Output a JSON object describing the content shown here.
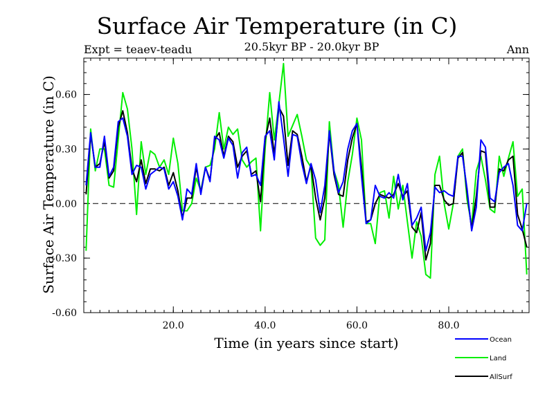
{
  "chart_data": {
    "type": "line",
    "title": "Surface Air Temperature (in C)",
    "subtitle": "20.5kyr BP - 20.0kyr BP",
    "expt_label": "Expt = teaev-teadu",
    "season_label": "Ann",
    "xlabel": "Time (in years since start)",
    "ylabel": "Surface Air Temperature (in C)",
    "xlim": [
      0.5,
      97.5
    ],
    "ylim": [
      -0.6,
      0.8
    ],
    "x_ticks": [
      20,
      40,
      60,
      80
    ],
    "x_tick_labels": [
      "20.0",
      "40.0",
      "60.0",
      "80.0"
    ],
    "y_ticks": [
      -0.6,
      -0.3,
      0.0,
      0.3,
      0.6
    ],
    "y_tick_labels": [
      "-0.60",
      "-0.30",
      "0.00",
      "0.30",
      "0.60"
    ],
    "zero_line": 0.0,
    "x": [
      1,
      2,
      3,
      4,
      5,
      6,
      7,
      8,
      9,
      10,
      11,
      12,
      13,
      14,
      15,
      16,
      17,
      18,
      19,
      20,
      21,
      22,
      23,
      24,
      25,
      26,
      27,
      28,
      29,
      30,
      31,
      32,
      33,
      34,
      35,
      36,
      37,
      38,
      39,
      40,
      41,
      42,
      43,
      44,
      45,
      46,
      47,
      48,
      49,
      50,
      51,
      52,
      53,
      54,
      55,
      56,
      57,
      58,
      59,
      60,
      61,
      62,
      63,
      64,
      65,
      66,
      67,
      68,
      69,
      70,
      71,
      72,
      73,
      74,
      75,
      76,
      77,
      78,
      79,
      80,
      81,
      82,
      83,
      84,
      85,
      86,
      87,
      88,
      89,
      90,
      91,
      92,
      93,
      94,
      95,
      96,
      97
    ],
    "series": [
      {
        "name": "Ocean",
        "color": "#0000ff",
        "values": [
          0.1,
          0.39,
          0.2,
          0.2,
          0.37,
          0.15,
          0.2,
          0.45,
          0.47,
          0.37,
          0.16,
          0.21,
          0.2,
          0.08,
          0.16,
          0.18,
          0.2,
          0.19,
          0.08,
          0.12,
          0.04,
          -0.09,
          0.08,
          0.05,
          0.22,
          0.05,
          0.2,
          0.12,
          0.37,
          0.35,
          0.25,
          0.36,
          0.32,
          0.14,
          0.28,
          0.31,
          0.15,
          0.16,
          0.1,
          0.37,
          0.4,
          0.24,
          0.56,
          0.36,
          0.15,
          0.38,
          0.37,
          0.22,
          0.11,
          0.22,
          0.13,
          -0.05,
          0.1,
          0.4,
          0.18,
          0.06,
          0.12,
          0.3,
          0.4,
          0.44,
          0.15,
          -0.11,
          -0.09,
          0.1,
          0.04,
          0.03,
          0.06,
          0.03,
          0.16,
          0.02,
          0.11,
          -0.12,
          -0.08,
          -0.02,
          -0.26,
          -0.16,
          0.09,
          0.06,
          0.07,
          0.05,
          0.04,
          0.26,
          0.26,
          0.08,
          -0.15,
          -0.02,
          0.35,
          0.31,
          0.03,
          0.01,
          0.17,
          0.2,
          0.22,
          0.1,
          -0.12,
          -0.15,
          0.0
        ]
      },
      {
        "name": "Land",
        "color": "#00ee00",
        "values": [
          -0.26,
          0.41,
          0.18,
          0.3,
          0.3,
          0.1,
          0.09,
          0.35,
          0.61,
          0.52,
          0.3,
          -0.06,
          0.34,
          0.16,
          0.29,
          0.27,
          0.2,
          0.24,
          0.16,
          0.36,
          0.22,
          -0.04,
          -0.04,
          0.0,
          0.14,
          0.07,
          0.2,
          0.21,
          0.3,
          0.5,
          0.3,
          0.42,
          0.38,
          0.41,
          0.24,
          0.2,
          0.23,
          0.25,
          -0.15,
          0.3,
          0.61,
          0.35,
          0.55,
          0.77,
          0.37,
          0.43,
          0.49,
          0.37,
          0.24,
          0.2,
          -0.19,
          -0.23,
          -0.2,
          0.45,
          0.18,
          0.1,
          -0.13,
          0.12,
          0.27,
          0.47,
          0.35,
          -0.11,
          -0.11,
          -0.22,
          0.06,
          0.07,
          -0.08,
          0.15,
          -0.03,
          0.1,
          -0.1,
          -0.3,
          -0.1,
          -0.18,
          -0.39,
          -0.41,
          0.16,
          0.26,
          0.0,
          -0.14,
          0.0,
          0.26,
          0.3,
          0.02,
          -0.12,
          0.18,
          0.26,
          0.13,
          -0.03,
          -0.05,
          0.26,
          0.15,
          0.25,
          0.34,
          0.04,
          0.08,
          -0.39
        ]
      },
      {
        "name": "AllSurf",
        "color": "#000000",
        "values": [
          0.05,
          0.38,
          0.2,
          0.22,
          0.34,
          0.14,
          0.18,
          0.42,
          0.51,
          0.39,
          0.19,
          0.12,
          0.24,
          0.11,
          0.19,
          0.19,
          0.18,
          0.2,
          0.1,
          0.17,
          0.07,
          -0.08,
          0.03,
          0.03,
          0.2,
          0.06,
          0.2,
          0.13,
          0.35,
          0.39,
          0.26,
          0.37,
          0.34,
          0.2,
          0.26,
          0.29,
          0.16,
          0.18,
          0.01,
          0.35,
          0.47,
          0.27,
          0.53,
          0.48,
          0.21,
          0.4,
          0.38,
          0.26,
          0.12,
          0.21,
          0.03,
          -0.09,
          0.03,
          0.39,
          0.16,
          0.05,
          0.04,
          0.24,
          0.36,
          0.44,
          0.2,
          -0.1,
          -0.09,
          0.0,
          0.05,
          0.04,
          0.03,
          0.05,
          0.11,
          0.04,
          0.07,
          -0.13,
          -0.16,
          -0.05,
          -0.31,
          -0.22,
          0.1,
          0.1,
          0.02,
          -0.01,
          0.0,
          0.25,
          0.28,
          0.06,
          -0.14,
          0.04,
          0.29,
          0.28,
          -0.02,
          -0.02,
          0.19,
          0.18,
          0.24,
          0.26,
          -0.06,
          -0.14,
          -0.24
        ]
      }
    ]
  }
}
